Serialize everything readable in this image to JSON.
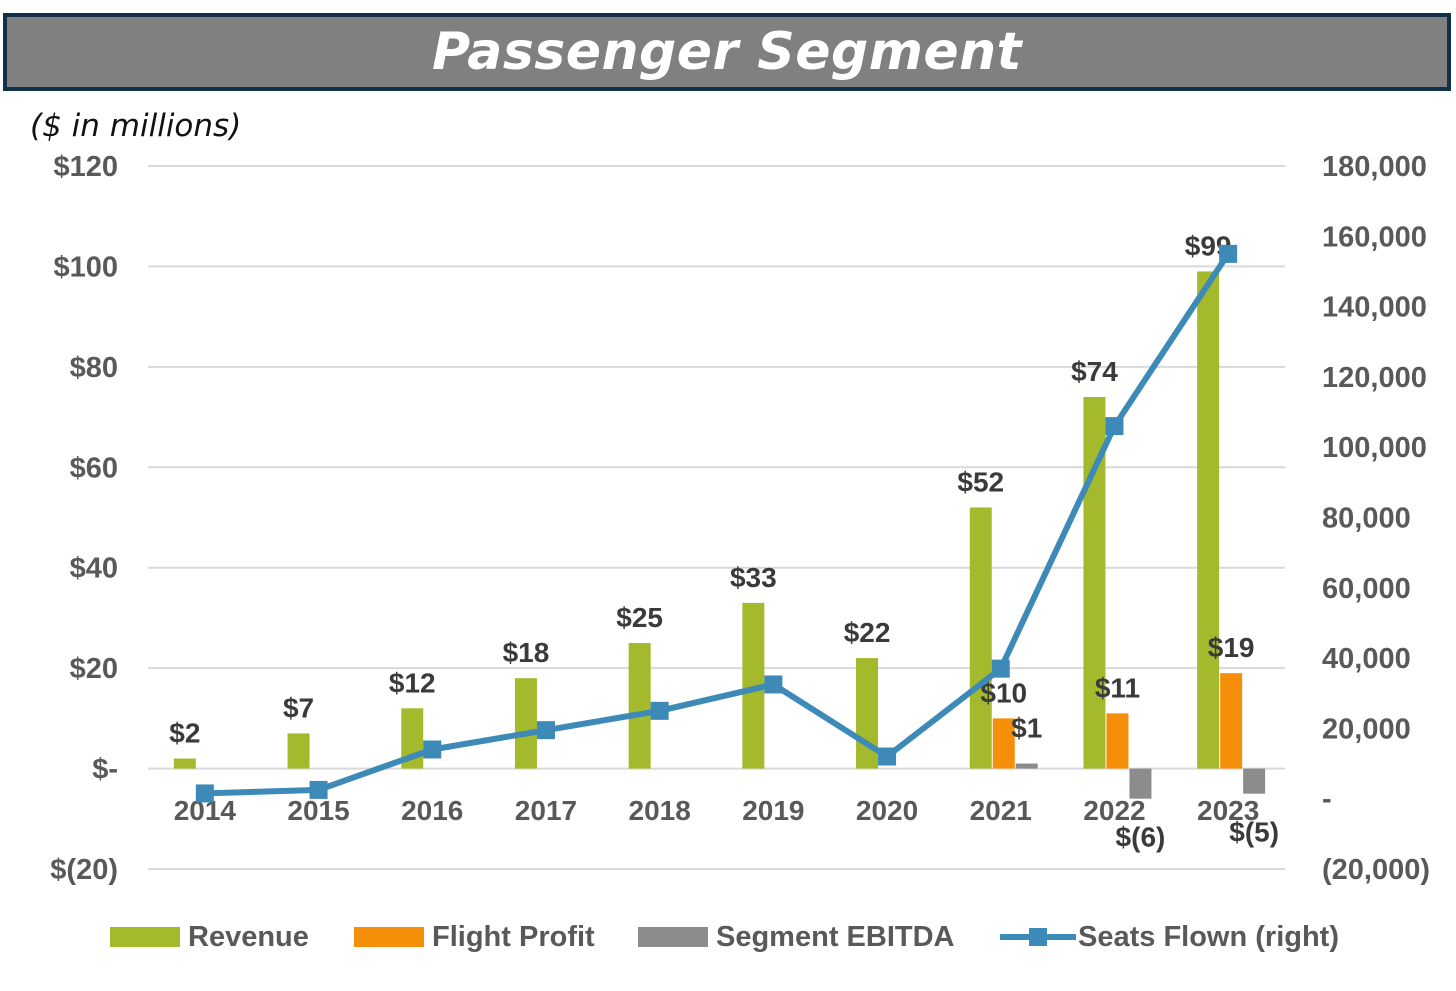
{
  "title": "Passenger Segment",
  "units_note": "($ in millions)",
  "colors": {
    "revenue": "#a4b92c",
    "flight_profit": "#f58f0a",
    "segment_ebitda": "#8c8c8c",
    "seats_flown": "#3d8ab8",
    "gridline": "#d9d9d9",
    "title_bg": "#808080",
    "title_border": "#13304a"
  },
  "chart_data": {
    "type": "bar",
    "title": "Passenger Segment",
    "ylabel": "($ in millions)",
    "categories": [
      "2014",
      "2015",
      "2016",
      "2017",
      "2018",
      "2019",
      "2020",
      "2021",
      "2022",
      "2023"
    ],
    "ylim": [
      -20,
      120
    ],
    "y_ticks": [
      -20,
      0,
      20,
      40,
      60,
      80,
      100,
      120
    ],
    "y_tick_labels": [
      "$(20)",
      "$-",
      "$20",
      "$40",
      "$60",
      "$80",
      "$100",
      "$120"
    ],
    "y2lim": [
      -20000,
      180000
    ],
    "y2_ticks": [
      -20000,
      0,
      20000,
      40000,
      60000,
      80000,
      100000,
      120000,
      140000,
      160000,
      180000
    ],
    "y2_tick_labels": [
      "(20,000)",
      "-",
      "20,000",
      "40,000",
      "60,000",
      "80,000",
      "100,000",
      "120,000",
      "140,000",
      "160,000",
      "180,000"
    ],
    "grid": true,
    "legend_position": "bottom",
    "series": [
      {
        "name": "Revenue",
        "type": "bar",
        "axis": "left",
        "values": [
          2,
          7,
          12,
          18,
          25,
          33,
          22,
          52,
          74,
          99
        ],
        "labels": [
          "$2",
          "$7",
          "$12",
          "$18",
          "$25",
          "$33",
          "$22",
          "$52",
          "$74",
          "$99"
        ]
      },
      {
        "name": "Flight Profit",
        "type": "bar",
        "axis": "left",
        "values": [
          null,
          null,
          null,
          null,
          null,
          null,
          null,
          10,
          11,
          19
        ],
        "labels": [
          "",
          "",
          "",
          "",
          "",
          "",
          "",
          "$10",
          "$11",
          "$19"
        ]
      },
      {
        "name": "Segment EBITDA",
        "type": "bar",
        "axis": "left",
        "values": [
          null,
          null,
          null,
          null,
          null,
          null,
          null,
          1,
          -6,
          -5
        ],
        "labels": [
          "",
          "",
          "",
          "",
          "",
          "",
          "",
          "$1",
          "$(6)",
          "$(5)"
        ]
      },
      {
        "name": "Seats Flown (right)",
        "type": "line",
        "axis": "right",
        "values": [
          1500,
          2500,
          14000,
          19500,
          25000,
          32500,
          12000,
          37000,
          106000,
          155000
        ]
      }
    ]
  }
}
